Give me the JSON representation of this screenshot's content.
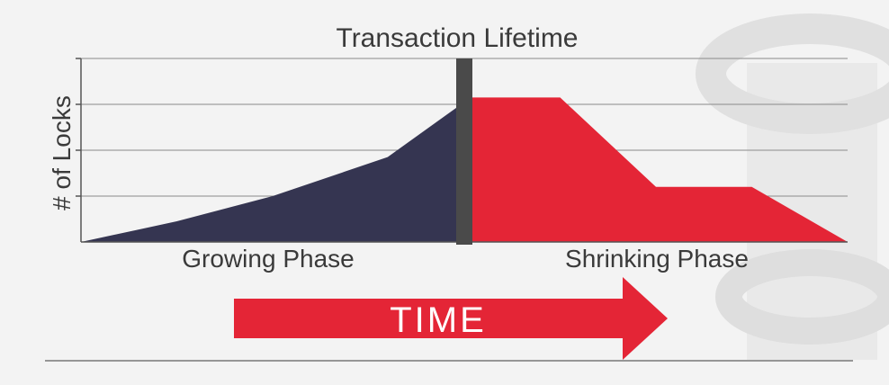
{
  "chart_data": {
    "type": "area",
    "title": "Transaction Lifetime",
    "ylabel": "# of Locks",
    "xlabel": "",
    "ylim": [
      0,
      4
    ],
    "grid": true,
    "series": [
      {
        "name": "Growing Phase",
        "color": "#353551",
        "points": [
          [
            0,
            0
          ],
          [
            0.25,
            0.45
          ],
          [
            0.5,
            1.0
          ],
          [
            0.8,
            1.85
          ],
          [
            1.0,
            3.05
          ]
        ]
      },
      {
        "name": "Shrinking Phase",
        "color": "#e42536",
        "points": [
          [
            1.0,
            3.15
          ],
          [
            1.25,
            3.15
          ],
          [
            1.5,
            1.2
          ],
          [
            1.75,
            1.2
          ],
          [
            2.0,
            0
          ]
        ]
      }
    ],
    "lock_point_x": 1.0,
    "lock_point_color": "#4a4a4a",
    "xlim": [
      0,
      2.0
    ]
  },
  "phases": {
    "growing": "Growing Phase",
    "shrinking": "Shrinking Phase"
  },
  "arrow": {
    "label": "TIME",
    "color": "#e42536"
  }
}
